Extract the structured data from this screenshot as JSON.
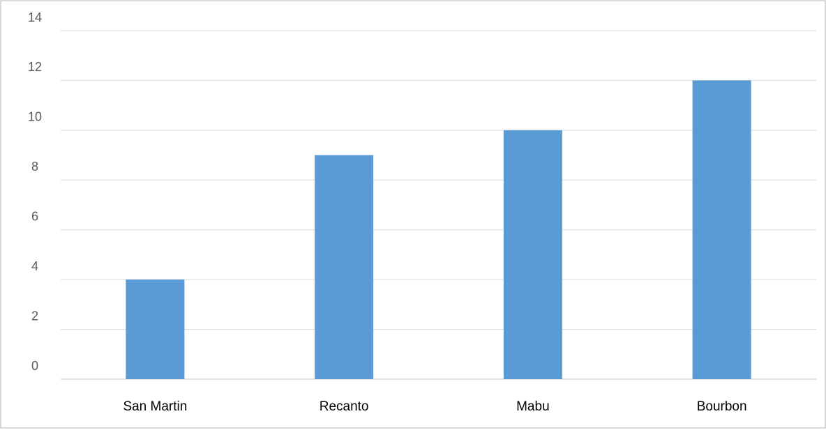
{
  "chart_data": {
    "type": "bar",
    "categories": [
      "San Martin",
      "Recanto",
      "Mabu",
      "Bourbon"
    ],
    "values": [
      4,
      9,
      10,
      12
    ],
    "ylim": [
      0,
      14
    ],
    "yticks": [
      0,
      2,
      4,
      6,
      8,
      10,
      12,
      14
    ],
    "grid": true,
    "legend": "none",
    "title": "",
    "xlabel": "",
    "ylabel": "",
    "colors": {
      "bar": "#5b9bd5",
      "grid": "#d9d9d9",
      "axis": "#d9d9d9"
    }
  }
}
